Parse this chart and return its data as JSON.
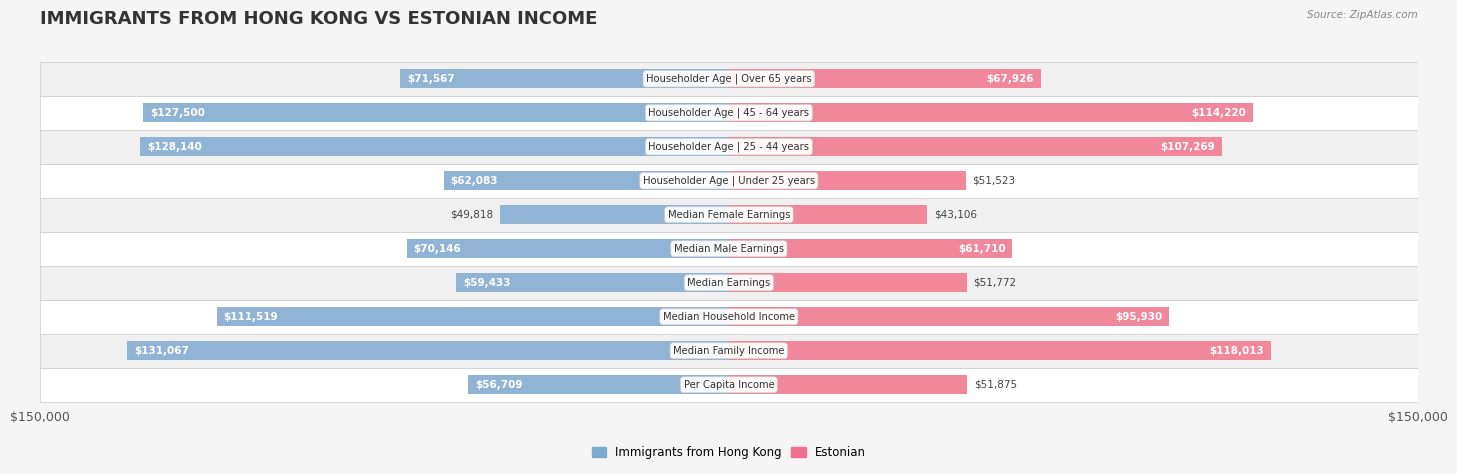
{
  "title": "IMMIGRANTS FROM HONG KONG VS ESTONIAN INCOME",
  "source": "Source: ZipAtlas.com",
  "categories": [
    "Per Capita Income",
    "Median Family Income",
    "Median Household Income",
    "Median Earnings",
    "Median Male Earnings",
    "Median Female Earnings",
    "Householder Age | Under 25 years",
    "Householder Age | 25 - 44 years",
    "Householder Age | 45 - 64 years",
    "Householder Age | Over 65 years"
  ],
  "hk_values": [
    56709,
    131067,
    111519,
    59433,
    70146,
    49818,
    62083,
    128140,
    127500,
    71567
  ],
  "est_values": [
    51875,
    118013,
    95930,
    51772,
    61710,
    43106,
    51523,
    107269,
    114220,
    67926
  ],
  "hk_labels": [
    "$56,709",
    "$131,067",
    "$111,519",
    "$59,433",
    "$70,146",
    "$49,818",
    "$62,083",
    "$128,140",
    "$127,500",
    "$71,567"
  ],
  "est_labels": [
    "$51,875",
    "$118,013",
    "$95,930",
    "$51,772",
    "$61,710",
    "$43,106",
    "$51,523",
    "$107,269",
    "$114,220",
    "$67,926"
  ],
  "hk_color": "#92b4d4",
  "est_color": "#f0879a",
  "hk_color_dark": "#6a9fc4",
  "est_color_dark": "#e8607a",
  "hk_legend_color": "#7aaad0",
  "est_legend_color": "#f07090",
  "max_val": 150000,
  "bg_color": "#f5f5f5",
  "row_bg_light": "#ffffff",
  "row_bg_alt": "#f0f0f0",
  "title_fontsize": 13,
  "label_fontsize": 7.5,
  "axis_label": "$150,000",
  "axis_label_right": "$150,000"
}
